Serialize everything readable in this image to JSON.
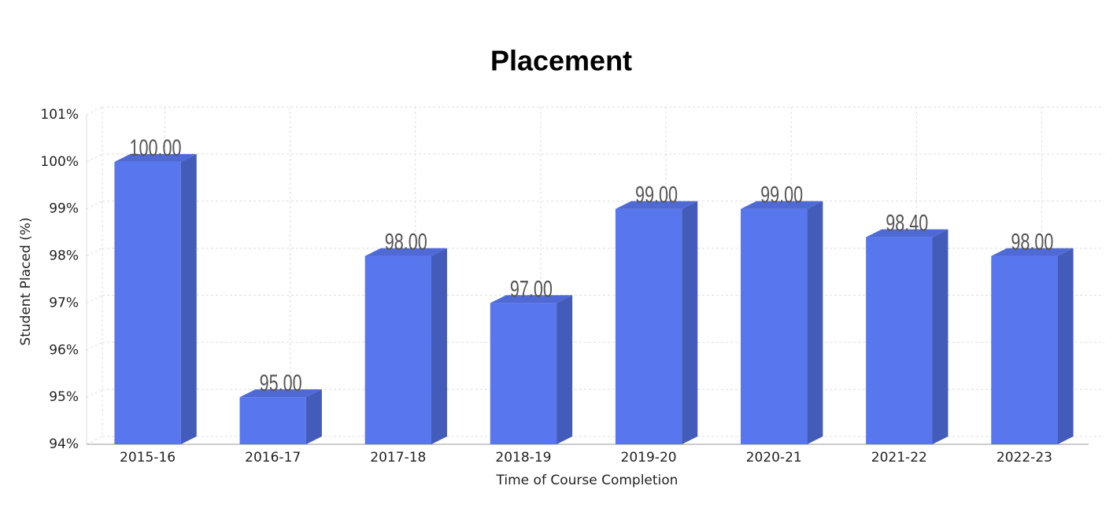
{
  "chart_data": {
    "type": "bar3d",
    "title": "Placement",
    "x_label": "Time of Course Completion",
    "y_label": "Student Placed (%)",
    "categories": [
      "2015-16",
      "2016-17",
      "2017-18",
      "2018-19",
      "2019-20",
      "2020-21",
      "2021-22",
      "2022-23"
    ],
    "values": [
      100,
      95,
      98,
      97,
      99,
      99,
      98.4,
      98
    ],
    "value_labels": [
      "100.00",
      "95.00",
      "98.00",
      "97.00",
      "99.00",
      "99.00",
      "98.40",
      "98.00"
    ],
    "color": "#5876ee",
    "ylim": [
      94,
      101
    ],
    "yticks": [
      {
        "value": 94,
        "label": "94%"
      },
      {
        "value": 95,
        "label": "95%"
      },
      {
        "value": 96,
        "label": "96%"
      },
      {
        "value": 97,
        "label": "97%"
      },
      {
        "value": 98,
        "label": "98%"
      },
      {
        "value": 99,
        "label": "99%"
      },
      {
        "value": 100,
        "label": "100%"
      },
      {
        "value": 101,
        "label": "101%"
      }
    ],
    "grid": true
  }
}
